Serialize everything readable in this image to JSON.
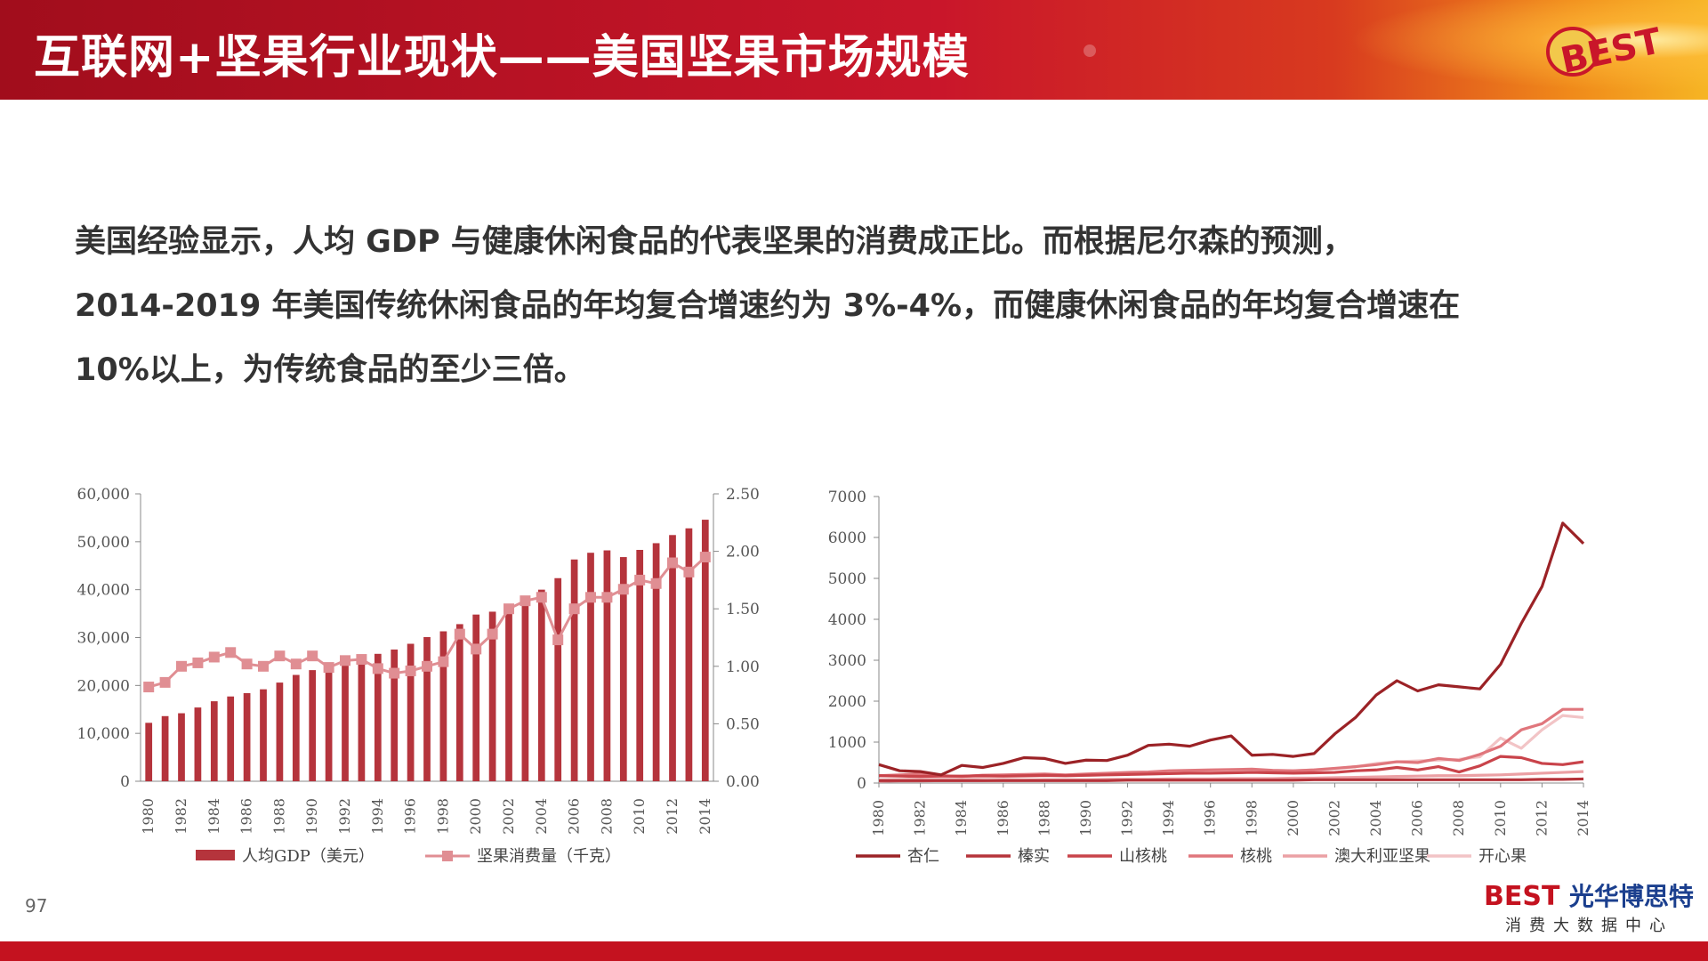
{
  "header": {
    "title": "互联网+坚果行业现状——美国坚果市场规模",
    "logo_text": "BEST"
  },
  "body_lines": [
    " 美国经验显示，人均 GDP 与健康休闲食品的代表坚果的消费成正比。而根据尼尔森的预测，",
    "2014-2019 年美国传统休闲食品的年均复合增速约为 3%-4%，而健康休闲食品的年均复合增速在",
    "10%以上，为传统食品的至少三倍。"
  ],
  "page_number": "97",
  "footer_logo": {
    "brand_b": "BEST",
    "brand_cn": "光华博思特",
    "sub": "消费大数据中心"
  },
  "colors": {
    "header_red": "#c9162a",
    "bar": "#b5343c",
    "consumption_line": "#e08e93",
    "almond": "#9b2226",
    "hazelnut": "#b5333a",
    "pecan": "#c9434a",
    "walnut": "#e0767c",
    "macadamia": "#eba0a4",
    "pistachio": "#f2c4c6"
  },
  "chart_data": [
    {
      "type": "bar",
      "categories": [
        "1980",
        "1981",
        "1982",
        "1983",
        "1984",
        "1985",
        "1986",
        "1987",
        "1988",
        "1989",
        "1990",
        "1991",
        "1992",
        "1993",
        "1994",
        "1995",
        "1996",
        "1997",
        "1998",
        "1999",
        "2000",
        "2001",
        "2002",
        "2003",
        "2004",
        "2005",
        "2006",
        "2007",
        "2008",
        "2009",
        "2010",
        "2011",
        "2012",
        "2013",
        "2014"
      ],
      "x_tick_labels": [
        "1980",
        "1982",
        "1984",
        "1986",
        "1988",
        "1990",
        "1992",
        "1994",
        "1996",
        "1998",
        "2000",
        "2002",
        "2004",
        "2006",
        "2008",
        "2010",
        "2012",
        "2014"
      ],
      "series": [
        {
          "name": "人均GDP（美元）",
          "axis": "left",
          "type": "bar",
          "values": [
            12200,
            13600,
            14200,
            15400,
            16700,
            17700,
            18400,
            19200,
            20600,
            22200,
            23200,
            23600,
            24700,
            25500,
            26600,
            27500,
            28700,
            30100,
            31300,
            32800,
            34800,
            35400,
            36100,
            37800,
            40000,
            42400,
            46300,
            47700,
            48200,
            46800,
            48300,
            49700,
            51400,
            52800,
            54600
          ]
        },
        {
          "name": "坚果消费量（千克）",
          "axis": "right",
          "type": "line",
          "values": [
            0.82,
            0.86,
            1.0,
            1.03,
            1.08,
            1.12,
            1.02,
            1.0,
            1.09,
            1.02,
            1.09,
            0.99,
            1.05,
            1.06,
            0.98,
            0.94,
            0.96,
            1.0,
            1.04,
            1.28,
            1.15,
            1.28,
            1.5,
            1.57,
            1.6,
            1.23,
            1.5,
            1.6,
            1.6,
            1.67,
            1.75,
            1.72,
            1.9,
            1.82,
            1.95
          ]
        }
      ],
      "left_axis": {
        "ticks": [
          "60,000",
          "50,000",
          "40,000",
          "30,000",
          "20,000",
          "10,000",
          "0"
        ],
        "ylim": [
          0,
          60000
        ]
      },
      "right_axis": {
        "ticks": [
          "2.50",
          "2.00",
          "1.50",
          "1.00",
          "0.50",
          "0.00"
        ],
        "ylim": [
          0,
          2.5
        ]
      },
      "legend": [
        "人均GDP（美元）",
        "坚果消费量（千克）"
      ]
    },
    {
      "type": "line",
      "x": [
        1980,
        1981,
        1982,
        1983,
        1984,
        1985,
        1986,
        1987,
        1988,
        1989,
        1990,
        1991,
        1992,
        1993,
        1994,
        1995,
        1996,
        1997,
        1998,
        1999,
        2000,
        2001,
        2002,
        2003,
        2004,
        2005,
        2006,
        2007,
        2008,
        2009,
        2010,
        2011,
        2012,
        2013,
        2014
      ],
      "x_tick_labels": [
        "1980",
        "1982",
        "1984",
        "1986",
        "1988",
        "1990",
        "1992",
        "1994",
        "1996",
        "1998",
        "2000",
        "2002",
        "2004",
        "2006",
        "2008",
        "2010",
        "2012",
        "2014"
      ],
      "y_ticks": [
        "7000",
        "6000",
        "5000",
        "4000",
        "3000",
        "2000",
        "1000",
        "0"
      ],
      "ylim": [
        0,
        7000
      ],
      "series": [
        {
          "name": "杏仁",
          "values": [
            450,
            300,
            280,
            200,
            430,
            380,
            480,
            620,
            600,
            480,
            560,
            550,
            680,
            920,
            950,
            900,
            1050,
            1150,
            680,
            700,
            650,
            720,
            1200,
            1600,
            2150,
            2500,
            2250,
            2400,
            2350,
            2300,
            2900,
            3900,
            4800,
            6350,
            5850
          ]
        },
        {
          "name": "榛实",
          "values": [
            60,
            60,
            60,
            60,
            60,
            60,
            60,
            60,
            60,
            60,
            60,
            60,
            70,
            70,
            70,
            70,
            70,
            70,
            70,
            70,
            70,
            80,
            80,
            80,
            80,
            80,
            80,
            80,
            80,
            80,
            80,
            80,
            90,
            90,
            100
          ]
        },
        {
          "name": "山核桃",
          "values": [
            180,
            170,
            160,
            170,
            170,
            180,
            170,
            180,
            190,
            180,
            190,
            200,
            210,
            220,
            230,
            240,
            240,
            250,
            260,
            250,
            240,
            250,
            260,
            300,
            320,
            380,
            320,
            400,
            270,
            420,
            650,
            620,
            480,
            450,
            520
          ]
        },
        {
          "name": "核桃",
          "values": [
            180,
            200,
            220,
            180,
            160,
            190,
            200,
            210,
            220,
            200,
            220,
            240,
            260,
            270,
            300,
            310,
            320,
            330,
            340,
            310,
            300,
            320,
            360,
            400,
            450,
            520,
            500,
            600,
            550,
            700,
            900,
            1300,
            1450,
            1800,
            1800
          ]
        },
        {
          "name": "澳大利亚坚果",
          "values": [
            40,
            50,
            50,
            60,
            60,
            60,
            70,
            70,
            80,
            80,
            80,
            90,
            90,
            90,
            100,
            100,
            100,
            110,
            110,
            110,
            120,
            120,
            130,
            140,
            150,
            160,
            170,
            180,
            180,
            190,
            200,
            220,
            240,
            260,
            280
          ]
        },
        {
          "name": "开心果",
          "values": [
            80,
            90,
            100,
            110,
            120,
            140,
            150,
            160,
            170,
            180,
            190,
            200,
            210,
            220,
            240,
            250,
            260,
            270,
            280,
            290,
            300,
            320,
            350,
            400,
            480,
            520,
            540,
            560,
            580,
            640,
            1100,
            850,
            1300,
            1650,
            1600
          ]
        }
      ],
      "legend": [
        "杏仁",
        "榛实",
        "山核桃",
        "核桃",
        "澳大利亚坚果",
        "开心果"
      ]
    }
  ]
}
